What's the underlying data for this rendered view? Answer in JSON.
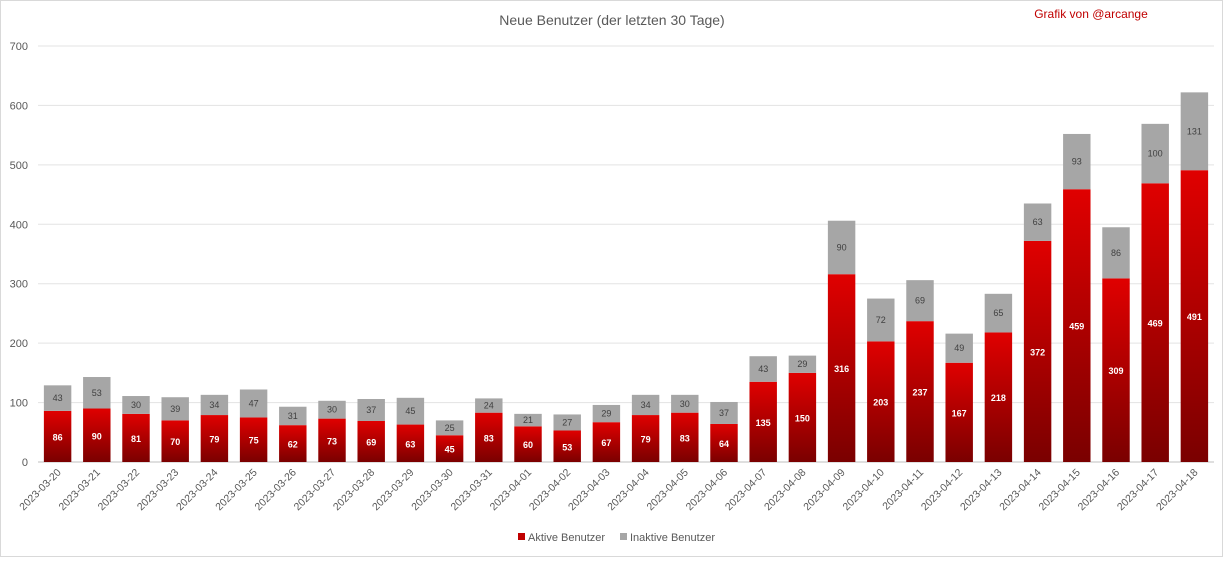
{
  "chart_data": {
    "type": "bar",
    "stacked": true,
    "title": "Neue Benutzer (der letzten 30 Tage)",
    "credit": "Grafik von @arcange",
    "xlabel": "",
    "ylabel": "",
    "ylim": [
      0,
      700
    ],
    "yticks": [
      0,
      100,
      200,
      300,
      400,
      500,
      600,
      700
    ],
    "grid": true,
    "legend_position": "bottom",
    "categories": [
      "2023-03-20",
      "2023-03-21",
      "2023-03-22",
      "2023-03-23",
      "2023-03-24",
      "2023-03-25",
      "2023-03-26",
      "2023-03-27",
      "2023-03-28",
      "2023-03-29",
      "2023-03-30",
      "2023-03-31",
      "2023-04-01",
      "2023-04-02",
      "2023-04-03",
      "2023-04-04",
      "2023-04-05",
      "2023-04-06",
      "2023-04-07",
      "2023-04-08",
      "2023-04-09",
      "2023-04-10",
      "2023-04-11",
      "2023-04-12",
      "2023-04-13",
      "2023-04-14",
      "2023-04-15",
      "2023-04-16",
      "2023-04-17",
      "2023-04-18"
    ],
    "series": [
      {
        "name": "Aktive Benutzer",
        "color": "#c00000",
        "values": [
          86,
          90,
          81,
          70,
          79,
          75,
          62,
          73,
          69,
          63,
          45,
          83,
          60,
          53,
          67,
          79,
          83,
          64,
          135,
          150,
          316,
          203,
          237,
          167,
          218,
          372,
          459,
          309,
          469,
          491
        ]
      },
      {
        "name": "Inaktive Benutzer",
        "color": "#a6a6a6",
        "values": [
          43,
          53,
          30,
          39,
          34,
          47,
          31,
          30,
          37,
          45,
          25,
          24,
          21,
          27,
          29,
          34,
          30,
          37,
          43,
          29,
          90,
          72,
          69,
          49,
          65,
          63,
          93,
          86,
          100,
          131
        ]
      }
    ]
  }
}
